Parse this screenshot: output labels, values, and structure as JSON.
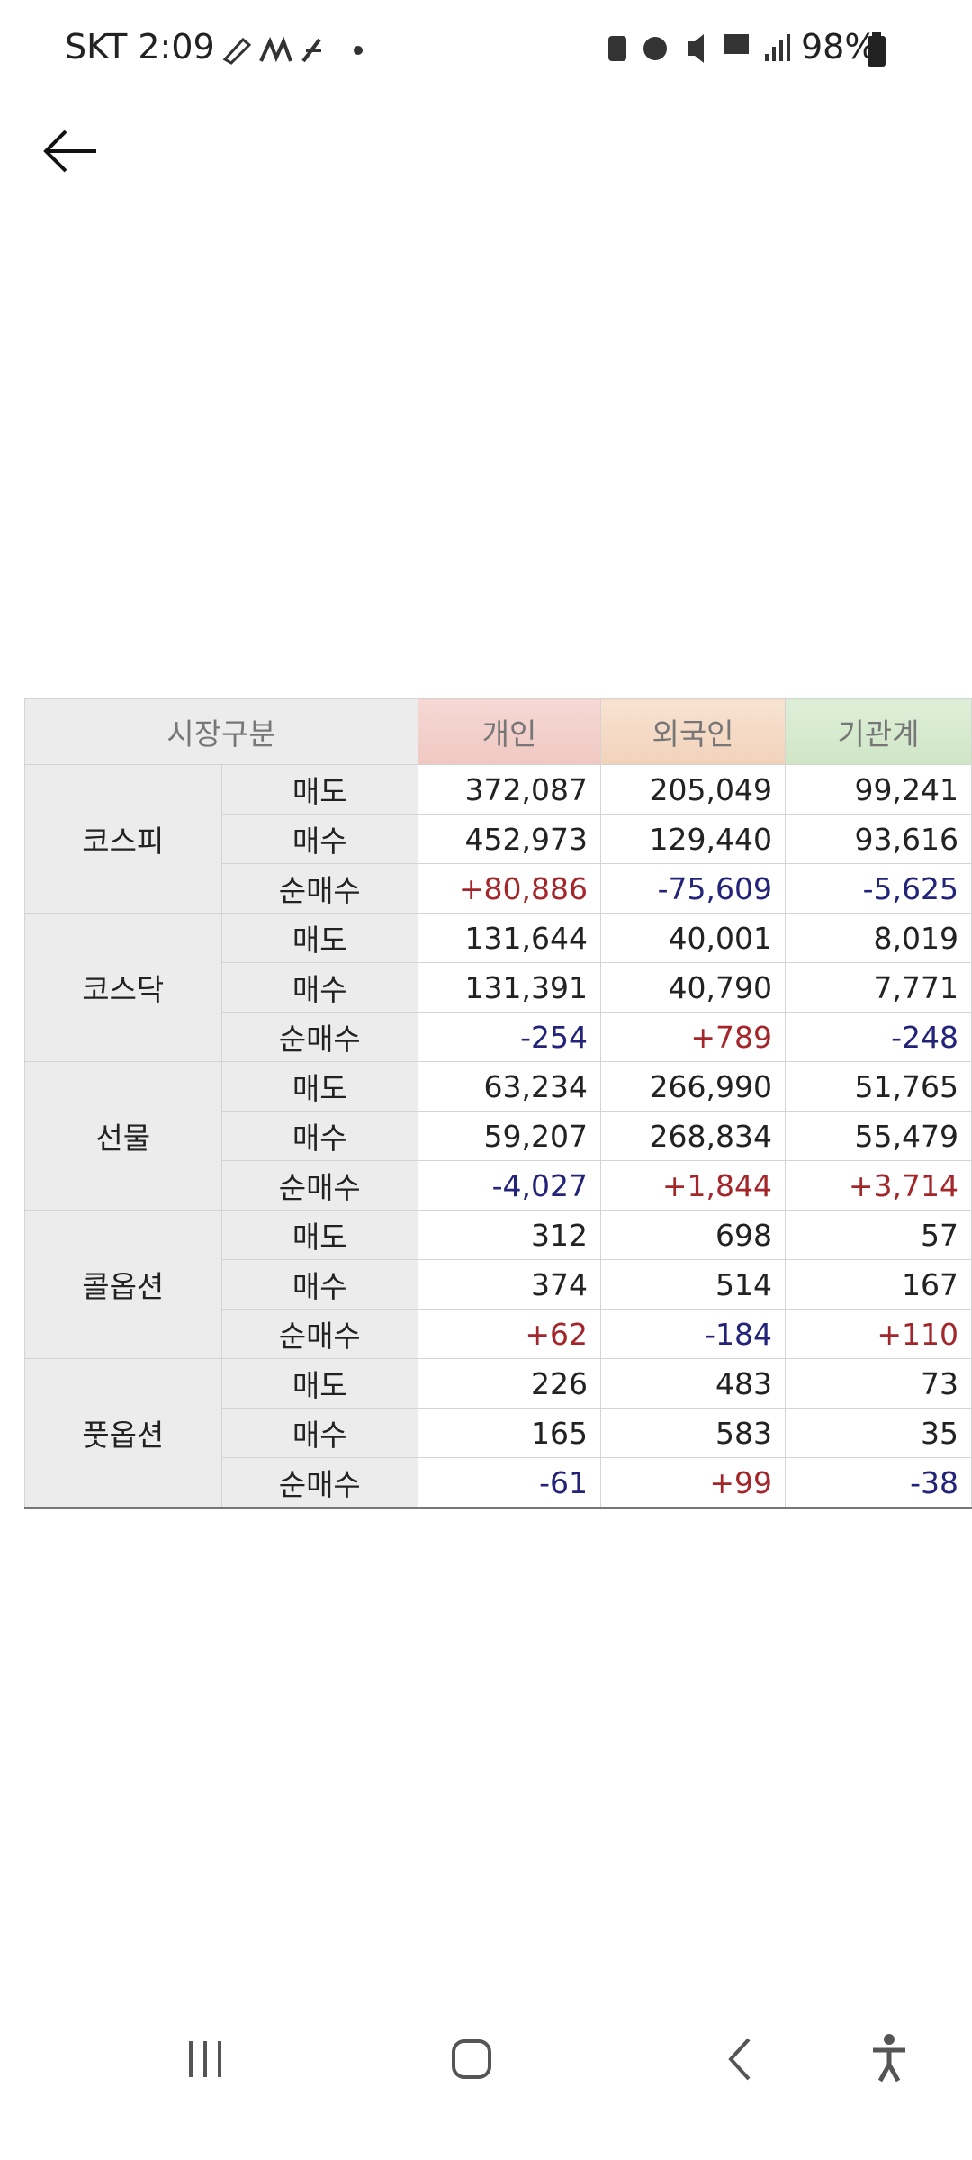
{
  "status_bar": {
    "carrier_time": "SKT 2:09",
    "battery": "98%"
  },
  "table": {
    "header": [
      "시장구분",
      "개인",
      "외국인",
      "기관계"
    ],
    "groups": [
      {
        "market": "코스피",
        "rows": [
          [
            "매도",
            "372,087",
            "205,049",
            "99,241"
          ],
          [
            "매수",
            "452,973",
            "129,440",
            "93,616"
          ],
          [
            "순매수",
            "+80,886",
            "-75,609",
            "-5,625"
          ]
        ]
      },
      {
        "market": "코스닥",
        "rows": [
          [
            "매도",
            "131,644",
            "40,001",
            "8,019"
          ],
          [
            "매수",
            "131,391",
            "40,790",
            "7,771"
          ],
          [
            "순매수",
            "-254",
            "+789",
            "-248"
          ]
        ]
      },
      {
        "market": "선물",
        "rows": [
          [
            "매도",
            "63,234",
            "266,990",
            "51,765"
          ],
          [
            "매수",
            "59,207",
            "268,834",
            "55,479"
          ],
          [
            "순매수",
            "-4,027",
            "+1,844",
            "+3,714"
          ]
        ]
      },
      {
        "market": "콜옵션",
        "rows": [
          [
            "매도",
            "312",
            "698",
            "57"
          ],
          [
            "매수",
            "374",
            "514",
            "167"
          ],
          [
            "순매수",
            "+62",
            "-184",
            "+110"
          ]
        ]
      },
      {
        "market": "풋옵션",
        "rows": [
          [
            "매도",
            "226",
            "483",
            "73"
          ],
          [
            "매수",
            "165",
            "583",
            "35"
          ],
          [
            "순매수",
            "-61",
            "+99",
            "-38"
          ]
        ]
      }
    ]
  }
}
